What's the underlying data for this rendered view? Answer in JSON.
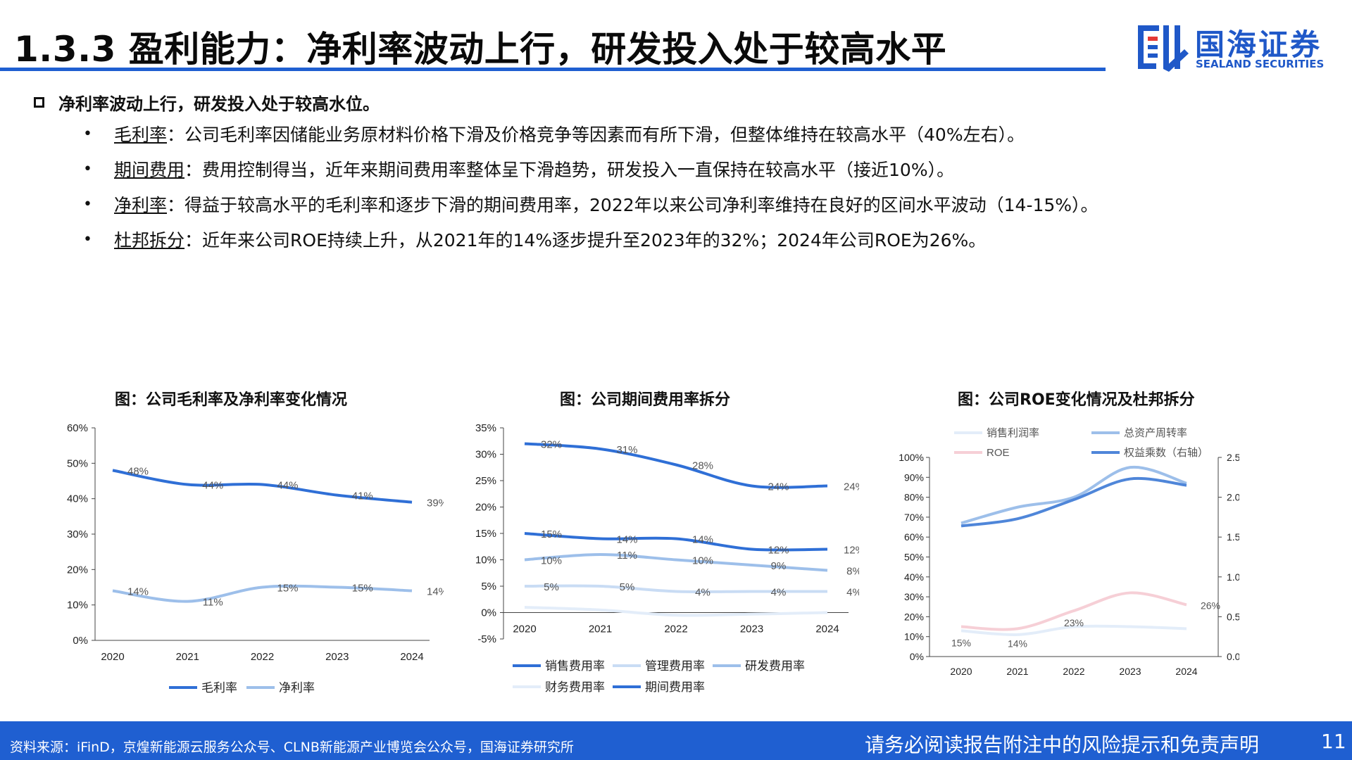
{
  "header": {
    "title": "1.3.3 盈利能力：净利率波动上行，研发投入处于较高水平",
    "logo_cn": "国海证券",
    "logo_en": "SEALAND SECURITIES"
  },
  "summary": {
    "main": "净利率波动上行，研发投入处于较高水位。",
    "items": [
      {
        "term": "毛利率",
        "text": "：公司毛利率因储能业务原材料价格下滑及价格竞争等因素而有所下滑，但整体维持在较高水平（40%左右）。"
      },
      {
        "term": "期间费用",
        "text": "：费用控制得当，近年来期间费用率整体呈下滑趋势，研发投入一直保持在较高水平（接近10%）。"
      },
      {
        "term": "净利率",
        "text": "：得益于较高水平的毛利率和逐步下滑的期间费用率，2022年以来公司净利率维持在良好的区间水平波动（14-15%）。"
      },
      {
        "term": "杜邦拆分",
        "text": "：近年来公司ROE持续上升，从2021年的14%逐步提升至2023年的32%；2024年公司ROE为26%。"
      }
    ]
  },
  "colors": {
    "dark_blue": "#2f6fd6",
    "mid_blue": "#9dbfea",
    "light_blue": "#c9dcf4",
    "pale": "#e3edf9",
    "pink": "#f6cfd6",
    "brand": "#1f5fd1"
  },
  "chart_data": [
    {
      "type": "line",
      "title": "图：公司毛利率及净利率变化情况",
      "categories": [
        "2020",
        "2021",
        "2022",
        "2023",
        "2024"
      ],
      "yticks": [
        "60%",
        "50%",
        "40%",
        "30%",
        "20%",
        "10%",
        "0%"
      ],
      "ylim": [
        0,
        60
      ],
      "series": [
        {
          "name": "毛利率",
          "values": [
            48,
            44,
            44,
            41,
            39
          ],
          "labels": [
            "48%",
            "44%",
            "44%",
            "41%",
            "39%"
          ]
        },
        {
          "name": "净利率",
          "values": [
            14,
            11,
            15,
            15,
            14
          ],
          "labels": [
            "14%",
            "11%",
            "15%",
            "15%",
            "14%"
          ]
        }
      ],
      "legend": [
        "毛利率",
        "净利率"
      ]
    },
    {
      "type": "line",
      "title": "图：公司期间费用率拆分",
      "categories": [
        "2020",
        "2021",
        "2022",
        "2023",
        "2024"
      ],
      "yticks": [
        "35%",
        "30%",
        "25%",
        "20%",
        "15%",
        "10%",
        "5%",
        "0%",
        "-5%"
      ],
      "ylim": [
        -5,
        35
      ],
      "series": [
        {
          "name": "销售费用率",
          "values": [
            15,
            14,
            14,
            12,
            12
          ],
          "labels": [
            "15%",
            "14%",
            "14%",
            "12%",
            "12%"
          ]
        },
        {
          "name": "管理费用率",
          "values": [
            5,
            5,
            4,
            4,
            4
          ],
          "labels": [
            "5%",
            "5%",
            "4%",
            "4%",
            "4%"
          ]
        },
        {
          "name": "研发费用率",
          "values": [
            10,
            11,
            10,
            9,
            8
          ],
          "labels": [
            "10%",
            "11%",
            "10%",
            "9%",
            "8%"
          ]
        },
        {
          "name": "财务费用率",
          "values": [
            1,
            0.5,
            -0.5,
            -0.3,
            0
          ]
        },
        {
          "name": "期间费用率",
          "values": [
            32,
            31,
            28,
            24,
            24
          ],
          "labels": [
            "32%",
            "31%",
            "28%",
            "24%",
            "24%"
          ]
        }
      ],
      "legend": [
        "销售费用率",
        "管理费用率",
        "研发费用率",
        "财务费用率",
        "期间费用率"
      ]
    },
    {
      "type": "line",
      "title": "图：公司ROE变化情况及杜邦拆分",
      "categories": [
        "2020",
        "2021",
        "2022",
        "2023",
        "2024"
      ],
      "yticks_left": [
        "100%",
        "90%",
        "80%",
        "70%",
        "60%",
        "50%",
        "40%",
        "30%",
        "20%",
        "10%",
        "0%"
      ],
      "yticks_right": [
        "2.5",
        "2.0",
        "1.5",
        "1.0",
        "0.5",
        "0.0"
      ],
      "ylim_left": [
        0,
        100
      ],
      "ylim_right": [
        0,
        2.5
      ],
      "series": [
        {
          "name": "销售利润率",
          "axis": "left",
          "values": [
            13,
            11,
            15,
            15,
            14
          ]
        },
        {
          "name": "总资产周转率",
          "axis": "left",
          "values": [
            67,
            75,
            80,
            95,
            87
          ]
        },
        {
          "name": "ROE",
          "axis": "left",
          "values": [
            15,
            14,
            23,
            32,
            26
          ],
          "labels": [
            "15%",
            "14%",
            "23%",
            "",
            "26%"
          ]
        },
        {
          "name": "权益乘数（右轴）",
          "axis": "right",
          "values": [
            1.64,
            1.73,
            1.97,
            2.23,
            2.15
          ]
        }
      ],
      "legend": [
        "销售利润率",
        "总资产周转率",
        "ROE",
        "权益乘数（右轴）"
      ]
    }
  ],
  "footer": {
    "source": "资料来源：iFinD，京煌新能源云服务公众号、CLNB新能源产业博览会公众号，国海证券研究所",
    "disclaimer": "请务必阅读报告附注中的风险提示和免责声明",
    "page": "11"
  }
}
